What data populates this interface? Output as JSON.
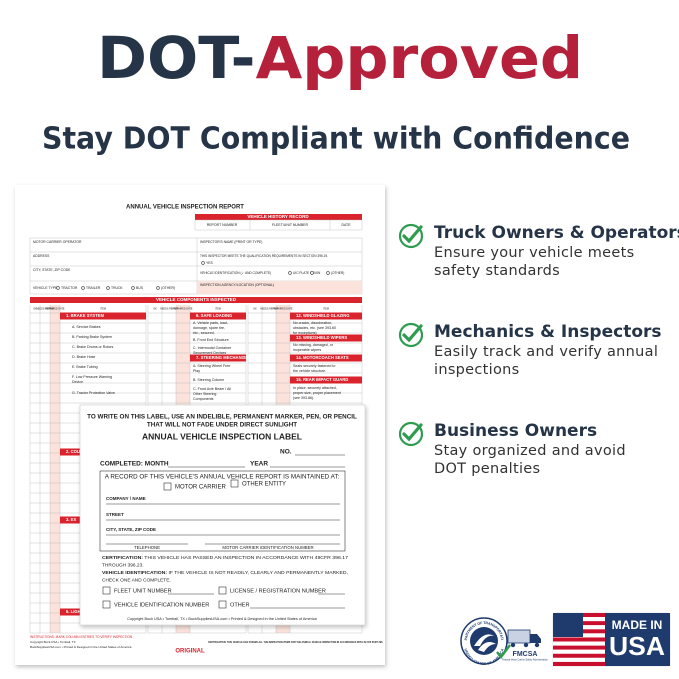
{
  "header": {
    "title_dark": "DOT-",
    "title_red": "Approved",
    "subtitle": "Stay DOT Compliant with Confidence"
  },
  "features": [
    {
      "title": "Truck Owners & Operators",
      "lines": [
        "Ensure your vehicle meets",
        "safety standards"
      ]
    },
    {
      "title": "Mechanics & Inspectors",
      "lines": [
        "Easily track and verify annual",
        "inspections"
      ]
    },
    {
      "title": "Business Owners",
      "lines": [
        "Stay organized and avoid",
        "DOT penalties"
      ]
    }
  ],
  "form": {
    "title": "ANNUAL VEHICLE INSPECTION REPORT",
    "history_header": "VEHICLE HISTORY RECORD",
    "history_cols": [
      "REPORT NUMBER",
      "FLEET/UNIT NUMBER",
      "DATE"
    ],
    "carrier": "MOTOR CARRIER OPERATOR",
    "address": "ADDRESS",
    "city": "CITY, STATE, ZIP CODE",
    "vehicle_type_label": "VEHICLE TYPE:",
    "vehicle_types": [
      "TRACTOR",
      "TRAILER",
      "TRUCK",
      "BUS",
      "(OTHER)"
    ],
    "inspector_name": "INSPECTOR'S NAME (PRINT OR TYPE)",
    "qualification": "THIS INSPECTOR MEETS THE QUALIFICATION REQUIREMENTS IN SECTION 396.19.",
    "yes": "YES",
    "vehicle_id": "VEHICLE IDENTIFICATION (✓ AND COMPLETE)",
    "id_options": [
      "UIC PLATE NO.",
      "VIN",
      "(OTHER)"
    ],
    "agency": "INSPECTION AGENCY/LOCATION (OPTIONAL)",
    "components_header": "VEHICLE COMPONENTS INSPECTED",
    "col_headers": [
      "OK",
      "NEEDS REPAIR",
      "REPAIRED DATE",
      "ITEM"
    ],
    "sections": [
      {
        "title": "1. BRAKE SYSTEM",
        "items": [
          [
            "A. Service Brakes"
          ],
          [
            "B. Parking Brake System"
          ],
          [
            "C. Brake Drums or Rotors"
          ],
          [
            "D. Brake Hose"
          ],
          [
            "E. Brake Tubing"
          ],
          [
            "F. Low Pressure Warning",
            "Device"
          ],
          [
            "G. Tractor Protection Valve"
          ]
        ]
      },
      {
        "title": "6. SAFE LOADING",
        "items": [
          [
            "A. Vehicle parts, load,",
            "dunnage, spare tire,",
            "etc., secured."
          ],
          [
            "B. Front End Structure"
          ],
          [
            "C. Intermodal Container",
            "Securement Devices"
          ]
        ]
      },
      {
        "title": "7. STEERING MECHANISM",
        "items": [
          [
            "A. Steering Wheel Free",
            "Play"
          ],
          [
            "B. Steering Column"
          ],
          [
            "C. Front Axle Beam / All",
            "Other Steering",
            "Components"
          ]
        ]
      },
      {
        "title": "12. WINDSHIELD GLAZING",
        "items": [
          [
            "No cracks, discoloration,",
            "obstacles, etc. (see 393.60",
            "for exceptions)"
          ]
        ]
      },
      {
        "title": "13. WINDSHIELD WIPERS",
        "items": [
          [
            "No missing, damaged, or",
            "inoperable wipers"
          ]
        ]
      },
      {
        "title": "14. MOTORCOACH SEATS",
        "items": [
          [
            "Seats securely fastened to",
            "the vehicle structure."
          ]
        ]
      },
      {
        "title": "15. REAR IMPACT GUARD",
        "items": [
          [
            "In place, securely attached,",
            "proper size, proper placement",
            "(see 393.86)."
          ]
        ]
      },
      {
        "title": "2. COU",
        "items": []
      },
      {
        "title": "3. EX",
        "items": []
      },
      {
        "title": "5. LIGH",
        "items": []
      }
    ],
    "instructions": "INSTRUCTIONS: MARK COLUMN ENTRIES TO VERIFY INSPECTION",
    "certification": "CERTIFICATION: THIS VEHICLE HAS PASSED ALL THE INSPECTION ITEMS FOR THE ANNUAL VEHICLE INSPECTION IN ACCORDANCE WITH 49 CFR PART 396.",
    "original": "ORIGINAL",
    "copyright_lines": [
      "Copyright Buck USA • Tomball, TX",
      "BuckSuppliesUSA.com • Printed & Designed in the United States of America"
    ]
  },
  "label": {
    "instruction_lines": [
      "TO WRITE ON THIS LABEL, USE AN INDELIBLE, PERMANENT MARKER, PEN, OR PENCIL",
      "THAT WILL NOT FADE UNDER DIRECT SUNLIGHT"
    ],
    "title": "ANNUAL VEHICLE INSPECTION LABEL",
    "number": "NO.",
    "completed_month": "COMPLETED: MONTH",
    "year": "YEAR",
    "record": "A RECORD OF THIS VEHICLE'S ANNUAL VEHICLE REPORT IS MAINTAINED AT:",
    "record_options": [
      "MOTOR CARRIER",
      "OTHER ENTITY"
    ],
    "company": "COMPANY / NAME",
    "street": "STREET",
    "city": "CITY, STATE, ZIP CODE",
    "telephone": "TELEPHONE",
    "carrier_id": "MOTOR CARRIER IDENTIFICATION NUMBER",
    "certification_label": "CERTIFICATION:",
    "certification_lines": [
      "THIS VEHICLE HAS PASSED AN INSPECTION IN ACCORDANCE WITH 49CFR 396.17",
      "THROUGH 396.23."
    ],
    "vehicle_id_label": "VEHICLE IDENTIFICATION:",
    "vehicle_id_lines": [
      "IF THE VEHICLE IS NOT READILY, CLEARLY AND PERMANENTLY MARKED,",
      "CHECK ONE AND COMPLETE."
    ],
    "id_options": [
      "FLEET UNIT NUMBER",
      "LICENSE / REGISTRATION NUMBER",
      "VEHICLE IDENTIFICATION NUMBER",
      "OTHER"
    ],
    "copyright": "Copyright Buck USA • Tomball, TX • BuckSuppliesUSA.com • Printed & Designed in the United States of America"
  },
  "logos": {
    "dot_seal": [
      "DEPARTMENT OF TRANSPORTATION",
      "UNITED STATES OF AMERICA"
    ],
    "fmcsa": "FMCSA",
    "fmcsa_tagline": "Federal Motor Carrier Safety Administration",
    "made_in": "MADE IN",
    "usa": "USA"
  }
}
